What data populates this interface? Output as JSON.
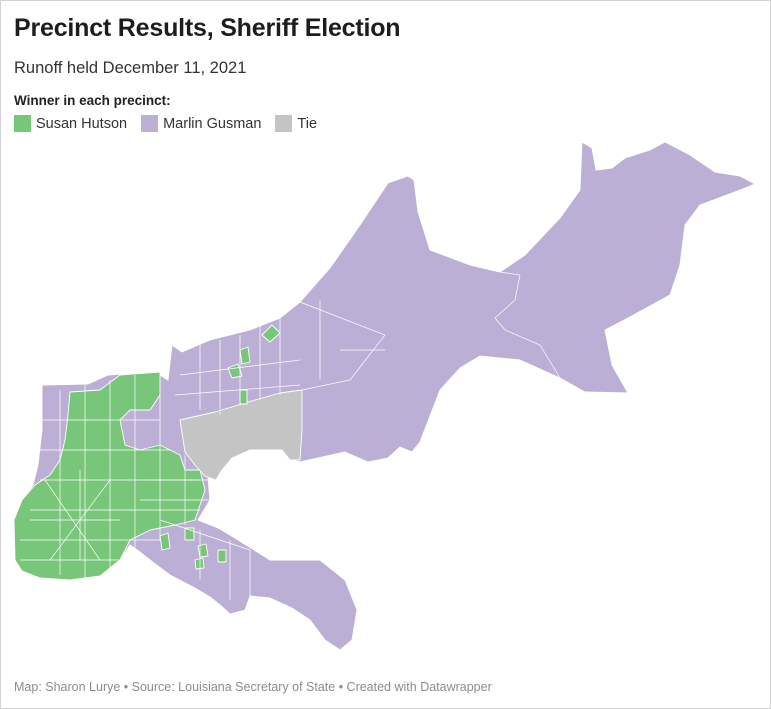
{
  "title": "Precinct Results, Sheriff Election",
  "subtitle": "Runoff held December 11, 2021",
  "legend": {
    "title": "Winner in each precinct:",
    "items": [
      {
        "label": "Susan Hutson",
        "color": "#78c679"
      },
      {
        "label": "Marlin Gusman",
        "color": "#bcafd5"
      },
      {
        "label": "Tie",
        "color": "#c4c4c4"
      }
    ]
  },
  "footer": "Map: Sharon Lurye • Source: Louisiana Secretary of State • Created with Datawrapper"
}
